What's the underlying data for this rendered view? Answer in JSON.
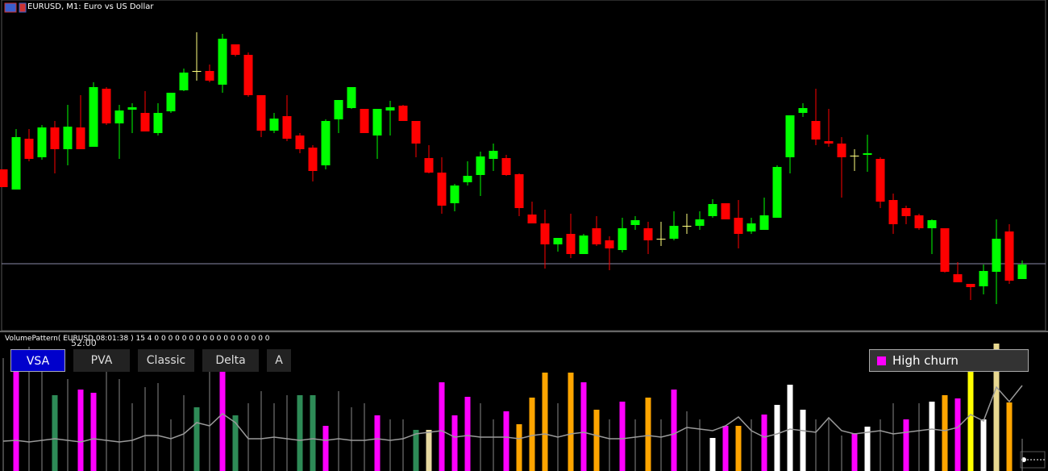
{
  "header": {
    "title": "EURUSD, M1:  Euro vs US Dollar"
  },
  "indicator": {
    "label": "VolumePattern( EURUSD,08:01:38 ) 15 4 0 0 0 0 0 0 0 0 0 0 0 0 0 0 0 0 0",
    "countdown": "52:00"
  },
  "buttons": [
    "VSA",
    "PVA",
    "Classic",
    "Delta",
    "A"
  ],
  "active_button": "VSA",
  "chart_data": [
    {
      "type": "candlestick",
      "ylim": [
        0,
        410
      ],
      "up_color": "#00ff00",
      "down_color": "#ff0000",
      "doji_color": "#ffff80",
      "price_line": 83,
      "price_line_color": "#8a8aa8",
      "open": [
        200,
        175,
        238,
        215,
        252,
        225,
        252,
        228,
        300,
        257,
        274,
        270,
        245,
        272,
        298,
        322,
        322,
        305,
        355,
        342,
        292,
        248,
        266,
        242,
        227,
        205,
        262,
        276,
        275,
        242,
        273,
        279,
        260,
        214,
        196,
        158,
        184,
        193,
        213,
        214,
        194,
        144,
        133,
        107,
        120,
        95,
        127,
        112,
        100,
        131,
        127,
        114,
        114,
        130,
        130,
        142,
        158,
        140,
        123,
        125,
        140,
        215,
        270,
        260,
        235,
        232,
        217,
        218,
        213,
        162,
        152,
        143,
        127,
        127,
        70,
        58,
        55,
        73,
        123,
        64
      ],
      "close": [
        178,
        240,
        213,
        252,
        225,
        253,
        225,
        302,
        257,
        273,
        277,
        247,
        270,
        295,
        320,
        322,
        310,
        362,
        342,
        292,
        248,
        263,
        238,
        225,
        198,
        260,
        286,
        302,
        245,
        275,
        277,
        260,
        232,
        196,
        155,
        180,
        192,
        216,
        223,
        193,
        152,
        133,
        107,
        115,
        95,
        118,
        107,
        102,
        127,
        137,
        112,
        114,
        130,
        130,
        138,
        157,
        138,
        120,
        133,
        143,
        203,
        267,
        276,
        237,
        232,
        215,
        217,
        220,
        160,
        132,
        142,
        127,
        137,
        73,
        60,
        54,
        74,
        114,
        62,
        82
      ],
      "high": [
        200,
        250,
        250,
        255,
        260,
        280,
        292,
        308,
        302,
        280,
        282,
        297,
        282,
        295,
        325,
        370,
        330,
        368,
        355,
        345,
        292,
        270,
        292,
        245,
        230,
        262,
        286,
        302,
        275,
        275,
        285,
        280,
        260,
        230,
        215,
        182,
        210,
        222,
        232,
        218,
        195,
        160,
        150,
        115,
        145,
        120,
        142,
        117,
        140,
        142,
        135,
        135,
        148,
        145,
        148,
        163,
        158,
        162,
        140,
        165,
        205,
        267,
        282,
        300,
        275,
        240,
        225,
        243,
        215,
        170,
        155,
        145,
        138,
        127,
        85,
        58,
        82,
        138,
        132,
        87
      ],
      "low": [
        178,
        175,
        210,
        212,
        195,
        205,
        225,
        228,
        255,
        213,
        245,
        247,
        242,
        270,
        297,
        310,
        308,
        295,
        340,
        290,
        240,
        245,
        235,
        220,
        185,
        200,
        245,
        275,
        245,
        213,
        242,
        260,
        215,
        195,
        145,
        148,
        180,
        167,
        198,
        192,
        142,
        133,
        77,
        98,
        90,
        95,
        105,
        75,
        97,
        125,
        95,
        105,
        112,
        120,
        125,
        140,
        138,
        102,
        120,
        125,
        140,
        195,
        265,
        230,
        228,
        165,
        198,
        197,
        152,
        120,
        132,
        125,
        95,
        72,
        60,
        38,
        45,
        33,
        58,
        64
      ]
    },
    {
      "type": "bar",
      "ylim": [
        0,
        172
      ],
      "neutral_color": "#888888",
      "values": [
        140,
        129,
        154,
        134,
        94,
        114,
        101,
        97,
        139,
        114,
        84,
        104,
        109,
        64,
        94,
        79,
        124,
        124,
        69,
        84,
        99,
        84,
        94,
        94,
        94,
        56,
        99,
        79,
        84,
        69,
        64,
        64,
        51,
        51,
        110,
        69,
        92,
        84,
        64,
        74,
        58,
        91,
        122,
        84,
        122,
        110,
        76,
        64,
        86,
        64,
        91,
        64,
        101,
        74,
        64,
        41,
        56,
        56,
        64,
        70,
        82,
        107,
        76,
        64,
        64,
        44,
        47,
        55,
        64,
        84,
        64,
        84,
        86,
        94,
        90,
        137,
        64,
        158,
        85,
        40
      ],
      "colors": [
        "#888888",
        "#ff00ff",
        "#888888",
        "#888888",
        "#2e8b57",
        "#888888",
        "#ff00ff",
        "#ff00ff",
        "#888888",
        "#888888",
        "#888888",
        "#888888",
        "#888888",
        "#888888",
        "#888888",
        "#2e8b57",
        "#888888",
        "#ff00ff",
        "#2e8b57",
        "#888888",
        "#888888",
        "#888888",
        "#888888",
        "#2e8b57",
        "#2e8b57",
        "#ff00ff",
        "#888888",
        "#888888",
        "#888888",
        "#ff00ff",
        "#888888",
        "#888888",
        "#2e8b57",
        "#e6d9a0",
        "#ff00ff",
        "#ff00ff",
        "#ff00ff",
        "#888888",
        "#888888",
        "#ff00ff",
        "#ffa500",
        "#ffa500",
        "#ffa500",
        "#888888",
        "#ffa500",
        "#ff00ff",
        "#ffa500",
        "#888888",
        "#ff00ff",
        "#888888",
        "#ffa500",
        "#888888",
        "#ff00ff",
        "#888888",
        "#888888",
        "#ffffff",
        "#ff00ff",
        "#ffa500",
        "#888888",
        "#ff00ff",
        "#ffffff",
        "#ffffff",
        "#ffffff",
        "#888888",
        "#888888",
        "#888888",
        "#ff00ff",
        "#ffffff",
        "#888888",
        "#888888",
        "#ff00ff",
        "#888888",
        "#ffffff",
        "#ffa500",
        "#ff00ff",
        "#ffff00",
        "#ffffff",
        "#e8d890",
        "#ffa500",
        "#888888"
      ],
      "average": {
        "color": "#9a9a9a",
        "values": [
          37,
          38,
          36,
          38,
          40,
          38,
          36,
          40,
          38,
          36,
          38,
          44,
          44,
          40,
          46,
          60,
          56,
          71,
          60,
          40,
          40,
          42,
          40,
          38,
          40,
          38,
          40,
          38,
          38,
          40,
          38,
          40,
          46,
          48,
          50,
          42,
          44,
          42,
          42,
          42,
          40,
          44,
          46,
          42,
          46,
          48,
          44,
          40,
          40,
          42,
          44,
          42,
          46,
          54,
          52,
          50,
          56,
          67,
          50,
          42,
          46,
          52,
          50,
          48,
          66,
          50,
          46,
          48,
          50,
          46,
          48,
          50,
          52,
          50,
          54,
          70,
          62,
          104,
          86,
          106
        ]
      },
      "legend": {
        "label": "High churn",
        "color": "#ff00ff"
      }
    }
  ]
}
